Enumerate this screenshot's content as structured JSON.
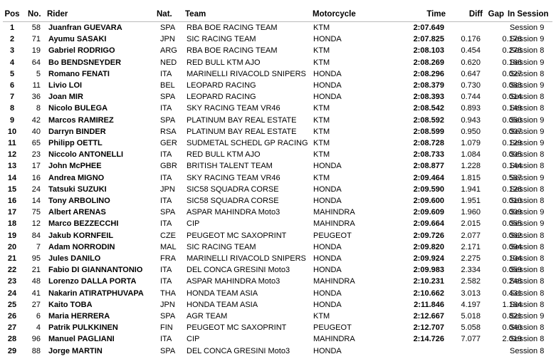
{
  "table": {
    "header": [
      "Pos",
      "No.",
      "Rider",
      "Nat.",
      "Team",
      "Motorcycle",
      "Time",
      "Diff",
      "Gap",
      "In Session"
    ],
    "rows": [
      [
        "1",
        "58",
        "Juanfran GUEVARA",
        "SPA",
        "RBA BOE RACING TEAM",
        "KTM",
        "2:07.649",
        null,
        null,
        "Session 9"
      ],
      [
        "2",
        "71",
        "Ayumu SASAKI",
        "JPN",
        "SIC RACING TEAM",
        "HONDA",
        "2:07.825",
        "0.176",
        "0.176",
        "Session 9"
      ],
      [
        "3",
        "19",
        "Gabriel RODRIGO",
        "ARG",
        "RBA BOE RACING TEAM",
        "KTM",
        "2:08.103",
        "0.454",
        "0.278",
        "Session 8"
      ],
      [
        "4",
        "64",
        "Bo BENDSNEYDER",
        "NED",
        "RED BULL KTM AJO",
        "KTM",
        "2:08.269",
        "0.620",
        "0.166",
        "Session 9"
      ],
      [
        "5",
        "5",
        "Romano FENATI",
        "ITA",
        "MARINELLI RIVACOLD SNIPERS",
        "HONDA",
        "2:08.296",
        "0.647",
        "0.027",
        "Session 8"
      ],
      [
        "6",
        "11",
        "Livio LOI",
        "BEL",
        "LEOPARD RACING",
        "HONDA",
        "2:08.379",
        "0.730",
        "0.083",
        "Session 9"
      ],
      [
        "7",
        "36",
        "Joan MIR",
        "SPA",
        "LEOPARD RACING",
        "HONDA",
        "2:08.393",
        "0.744",
        "0.014",
        "Session 8"
      ],
      [
        "8",
        "8",
        "Nicolo BULEGA",
        "ITA",
        "SKY RACING TEAM VR46",
        "KTM",
        "2:08.542",
        "0.893",
        "0.149",
        "Session 8"
      ],
      [
        "9",
        "42",
        "Marcos RAMIREZ",
        "SPA",
        "PLATINUM BAY REAL ESTATE",
        "KTM",
        "2:08.592",
        "0.943",
        "0.050",
        "Session 9"
      ],
      [
        "10",
        "40",
        "Darryn BINDER",
        "RSA",
        "PLATINUM BAY REAL ESTATE",
        "KTM",
        "2:08.599",
        "0.950",
        "0.007",
        "Session 9"
      ],
      [
        "11",
        "65",
        "Philipp OETTL",
        "GER",
        "SUDMETAL SCHEDL GP RACING",
        "KTM",
        "2:08.728",
        "1.079",
        "0.129",
        "Session 9"
      ],
      [
        "12",
        "23",
        "Niccolo ANTONELLI",
        "ITA",
        "RED BULL KTM AJO",
        "KTM",
        "2:08.733",
        "1.084",
        "0.005",
        "Session 8"
      ],
      [
        "13",
        "17",
        "John McPHEE",
        "GBR",
        "BRITISH TALENT TEAM",
        "HONDA",
        "2:08.877",
        "1.228",
        "0.144",
        "Session 8"
      ],
      [
        "14",
        "16",
        "Andrea MIGNO",
        "ITA",
        "SKY RACING TEAM VR46",
        "KTM",
        "2:09.464",
        "1.815",
        "0.587",
        "Session 9"
      ],
      [
        "15",
        "24",
        "Tatsuki SUZUKI",
        "JPN",
        "SIC58 SQUADRA CORSE",
        "HONDA",
        "2:09.590",
        "1.941",
        "0.126",
        "Session 8"
      ],
      [
        "16",
        "14",
        "Tony ARBOLINO",
        "ITA",
        "SIC58 SQUADRA CORSE",
        "HONDA",
        "2:09.600",
        "1.951",
        "0.010",
        "Session 8"
      ],
      [
        "17",
        "75",
        "Albert ARENAS",
        "SPA",
        "ASPAR MAHINDRA Moto3",
        "MAHINDRA",
        "2:09.609",
        "1.960",
        "0.009",
        "Session 9"
      ],
      [
        "18",
        "12",
        "Marco BEZZECCHI",
        "ITA",
        "CIP",
        "MAHINDRA",
        "2:09.664",
        "2.015",
        "0.055",
        "Session 9"
      ],
      [
        "19",
        "84",
        "Jakub KORNFEIL",
        "CZE",
        "PEUGEOT MC SAXOPRINT",
        "PEUGEOT",
        "2:09.726",
        "2.077",
        "0.062",
        "Session 8"
      ],
      [
        "20",
        "7",
        "Adam NORRODIN",
        "MAL",
        "SIC RACING TEAM",
        "HONDA",
        "2:09.820",
        "2.171",
        "0.094",
        "Session 8"
      ],
      [
        "21",
        "95",
        "Jules DANILO",
        "FRA",
        "MARINELLI RIVACOLD SNIPERS",
        "HONDA",
        "2:09.924",
        "2.275",
        "0.104",
        "Session 8"
      ],
      [
        "22",
        "21",
        "Fabio DI GIANNANTONIO",
        "ITA",
        "DEL CONCA GRESINI Moto3",
        "HONDA",
        "2:09.983",
        "2.334",
        "0.059",
        "Session 8"
      ],
      [
        "23",
        "48",
        "Lorenzo DALLA PORTA",
        "ITA",
        "ASPAR MAHINDRA Moto3",
        "MAHINDRA",
        "2:10.231",
        "2.582",
        "0.248",
        "Session 8"
      ],
      [
        "24",
        "41",
        "Nakarin ATIRATPHUVAPA",
        "THA",
        "HONDA TEAM ASIA",
        "HONDA",
        "2:10.662",
        "3.013",
        "0.431",
        "Session 8"
      ],
      [
        "25",
        "27",
        "Kaito TOBA",
        "JPN",
        "HONDA TEAM ASIA",
        "HONDA",
        "2:11.846",
        "4.197",
        "1.184",
        "Session 8"
      ],
      [
        "26",
        "6",
        "Maria HERRERA",
        "SPA",
        "AGR TEAM",
        "KTM",
        "2:12.667",
        "5.018",
        "0.821",
        "Session 9"
      ],
      [
        "27",
        "4",
        "Patrik PULKKINEN",
        "FIN",
        "PEUGEOT MC SAXOPRINT",
        "PEUGEOT",
        "2:12.707",
        "5.058",
        "0.040",
        "Session 8"
      ],
      [
        "28",
        "96",
        "Manuel PAGLIANI",
        "ITA",
        "CIP",
        "MAHINDRA",
        "2:14.726",
        "7.077",
        "2.019",
        "Session 8"
      ],
      [
        "29",
        "88",
        "Jorge MARTIN",
        "SPA",
        "DEL CONCA GRESINI Moto3",
        "HONDA",
        null,
        null,
        null,
        "Session 8"
      ]
    ]
  }
}
